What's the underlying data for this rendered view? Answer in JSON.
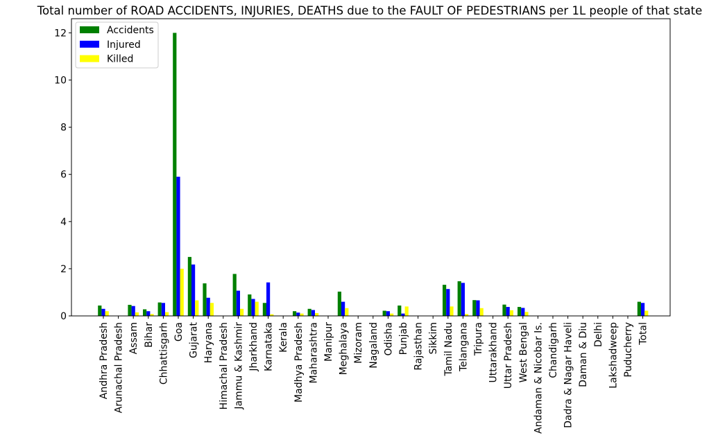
{
  "chart_data": {
    "type": "bar",
    "title": "Total number of ROAD ACCIDENTS, INJURIES, DEATHS due to the FAULT OF PEDESTRIANS per 1L people of that state",
    "xlabel": "",
    "ylabel": "",
    "ylim": [
      0,
      12.6
    ],
    "yticks": [
      0,
      2,
      4,
      6,
      8,
      10,
      12
    ],
    "grid": false,
    "legend_position": "top-left",
    "categories": [
      "Andhra Pradesh",
      "Arunachal Pradesh",
      "Assam",
      "Bihar",
      "Chhattisgarh",
      "Goa",
      "Gujarat",
      "Haryana",
      "Himachal Pradesh",
      "Jammu & Kashmir",
      "Jharkhand",
      "Karnataka",
      "Kerala",
      "Madhya Pradesh",
      "Maharashtra",
      "Manipur",
      "Meghalaya",
      "Mizoram",
      "Nagaland",
      "Odisha",
      "Punjab",
      "Rajasthan",
      "Sikkim",
      "Tamil Nadu",
      "Telangana",
      "Tripura",
      "Uttarakhand",
      "Uttar Pradesh",
      "West Bengal",
      "Andaman & Nicobar Is.",
      "Chandigarh",
      "Dadra & Nagar Haveli",
      "Daman & Diu",
      "Delhi",
      "Lakshadweep",
      "Puducherry",
      "Total"
    ],
    "series": [
      {
        "name": "Accidents",
        "color": "#008000",
        "values": [
          0.44,
          0.0,
          0.47,
          0.28,
          0.57,
          12.0,
          2.5,
          1.38,
          0.0,
          1.78,
          0.91,
          0.55,
          0.0,
          0.2,
          0.3,
          0.0,
          1.03,
          0.0,
          0.0,
          0.22,
          0.44,
          0.0,
          0.0,
          1.32,
          1.47,
          0.67,
          0.0,
          0.48,
          0.38,
          0.0,
          0.0,
          0.0,
          0.0,
          0.0,
          0.0,
          0.0,
          0.6
        ]
      },
      {
        "name": "Injured",
        "color": "#0000ff",
        "values": [
          0.3,
          0.0,
          0.42,
          0.2,
          0.55,
          5.9,
          2.18,
          0.77,
          0.0,
          1.07,
          0.72,
          1.42,
          0.0,
          0.14,
          0.25,
          0.0,
          0.6,
          0.0,
          0.0,
          0.2,
          0.1,
          0.0,
          0.0,
          1.14,
          1.4,
          0.66,
          0.0,
          0.38,
          0.34,
          0.0,
          0.0,
          0.0,
          0.0,
          0.0,
          0.0,
          0.0,
          0.55
        ]
      },
      {
        "name": "Killed",
        "color": "#ffff00",
        "values": [
          0.2,
          0.0,
          0.15,
          0.08,
          0.16,
          2.0,
          0.66,
          0.55,
          0.0,
          0.3,
          0.6,
          0.07,
          0.0,
          0.1,
          0.12,
          0.0,
          0.33,
          0.0,
          0.0,
          0.1,
          0.4,
          0.0,
          0.0,
          0.4,
          0.08,
          0.33,
          0.0,
          0.24,
          0.17,
          0.0,
          0.0,
          0.0,
          0.0,
          0.0,
          0.0,
          0.0,
          0.22
        ]
      }
    ]
  }
}
